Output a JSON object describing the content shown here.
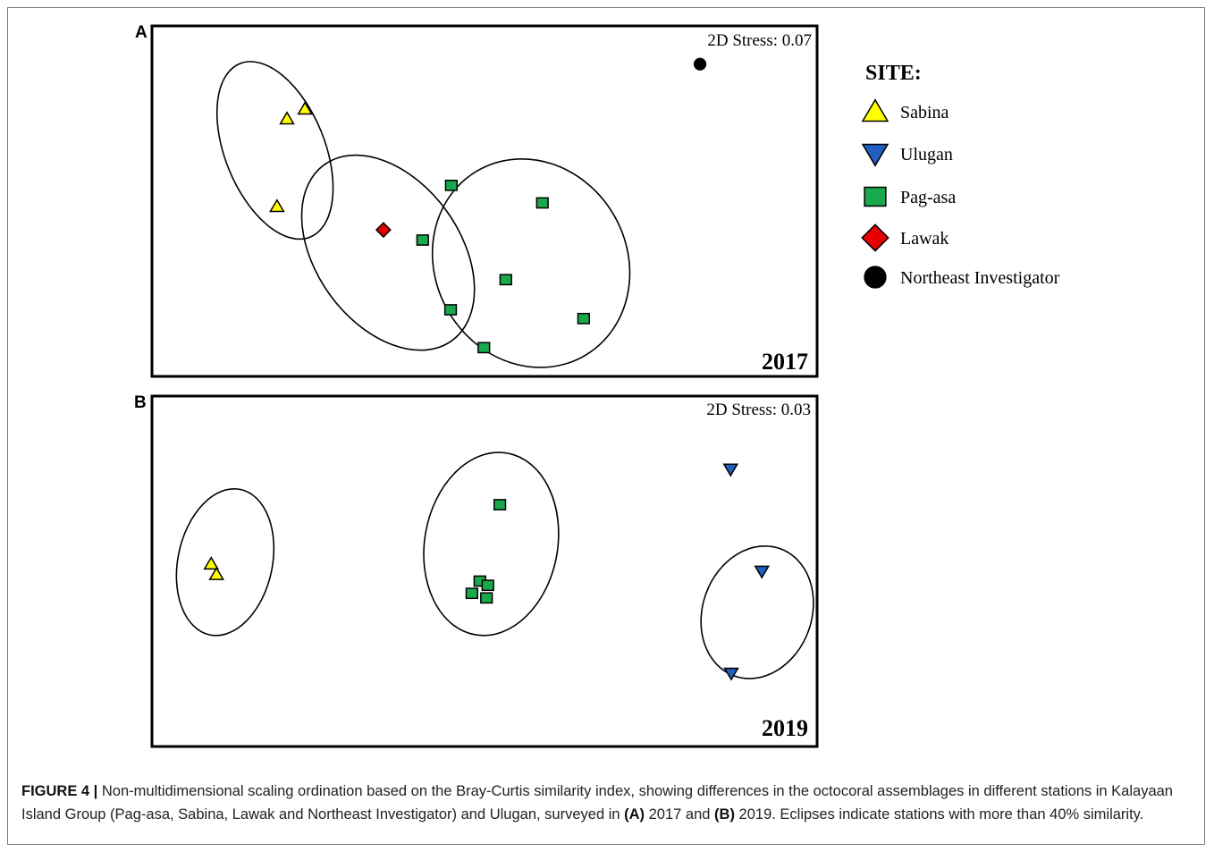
{
  "chart_data": [
    {
      "type": "scatter",
      "panel": "A",
      "stress_text": "2D Stress: 0.07",
      "year": "2017",
      "xlim": [
        0,
        100
      ],
      "ylim": [
        0,
        100
      ],
      "points": [
        {
          "site": "Sabina",
          "x": 20.3,
          "y": 73.5
        },
        {
          "site": "Sabina",
          "x": 23.0,
          "y": 76.3
        },
        {
          "site": "Sabina",
          "x": 18.8,
          "y": 48.5
        },
        {
          "site": "Pag-asa",
          "x": 45.0,
          "y": 54.5
        },
        {
          "site": "Pag-asa",
          "x": 44.9,
          "y": 19.0
        },
        {
          "site": "Pag-asa",
          "x": 40.7,
          "y": 38.9
        },
        {
          "site": "Pag-asa",
          "x": 58.7,
          "y": 49.5
        },
        {
          "site": "Pag-asa",
          "x": 53.2,
          "y": 27.6
        },
        {
          "site": "Pag-asa",
          "x": 64.9,
          "y": 16.5
        },
        {
          "site": "Pag-asa",
          "x": 49.9,
          "y": 8.2
        },
        {
          "site": "Lawak",
          "x": 34.8,
          "y": 41.8
        },
        {
          "site": "Northeast Investigator",
          "x": 82.4,
          "y": 89.1
        }
      ],
      "ellipses": [
        {
          "cx": 18.5,
          "cy": 64.5,
          "rx": 7.5,
          "ry": 26.7,
          "rotate": -22
        },
        {
          "cx": 35.5,
          "cy": 35.3,
          "rx": 10.8,
          "ry": 31.0,
          "rotate": -36
        },
        {
          "cx": 57.0,
          "cy": 32.3,
          "rx": 14.4,
          "ry": 30.5,
          "rotate": -30
        }
      ]
    },
    {
      "type": "scatter",
      "panel": "B",
      "stress_text": "2D Stress: 0.03",
      "year": "2019",
      "xlim": [
        0,
        100
      ],
      "ylim": [
        0,
        100
      ],
      "points": [
        {
          "site": "Sabina",
          "x": 8.9,
          "y": 52.1
        },
        {
          "site": "Sabina",
          "x": 9.7,
          "y": 49.1
        },
        {
          "site": "Pag-asa",
          "x": 52.3,
          "y": 69.0
        },
        {
          "site": "Pag-asa",
          "x": 49.3,
          "y": 47.2
        },
        {
          "site": "Pag-asa",
          "x": 50.5,
          "y": 46.0
        },
        {
          "site": "Pag-asa",
          "x": 48.1,
          "y": 43.7
        },
        {
          "site": "Pag-asa",
          "x": 50.3,
          "y": 42.4
        },
        {
          "site": "Ulugan",
          "x": 87.0,
          "y": 79.1
        },
        {
          "site": "Ulugan",
          "x": 91.7,
          "y": 50.0
        },
        {
          "site": "Ulugan",
          "x": 87.1,
          "y": 20.9
        }
      ],
      "ellipses": [
        {
          "cx": 11.0,
          "cy": 52.6,
          "rx": 7.1,
          "ry": 21.2,
          "rotate": 12
        },
        {
          "cx": 51.0,
          "cy": 57.8,
          "rx": 10.0,
          "ry": 26.3,
          "rotate": 10
        },
        {
          "cx": 91.0,
          "cy": 38.3,
          "rx": 8.2,
          "ry": 19.3,
          "rotate": 20
        }
      ]
    }
  ],
  "legend": {
    "title": "SITE:",
    "items": [
      {
        "label": "Sabina",
        "shape": "triangle-up",
        "color": "#ffff00"
      },
      {
        "label": "Ulugan",
        "shape": "triangle-down",
        "color": "#1f5fbf"
      },
      {
        "label": "Pag-asa",
        "shape": "square",
        "color": "#1aa84c"
      },
      {
        "label": "Lawak",
        "shape": "diamond",
        "color": "#e60000"
      },
      {
        "label": "Northeast Investigator",
        "shape": "circle",
        "color": "#000000"
      }
    ]
  },
  "caption": {
    "label": "FIGURE 4 |",
    "text1": " Non-multidimensional scaling ordination based on the Bray-Curtis similarity index, showing differences in the octocoral assemblages in different stations in Kalayaan Island Group (Pag-asa, Sabina, Lawak and Northeast Investigator) and Ulugan, surveyed in ",
    "a": "(A)",
    "text2": " 2017 and ",
    "b": "(B)",
    "text3": " 2019. Eclipses indicate stations with more than 40% similarity."
  }
}
